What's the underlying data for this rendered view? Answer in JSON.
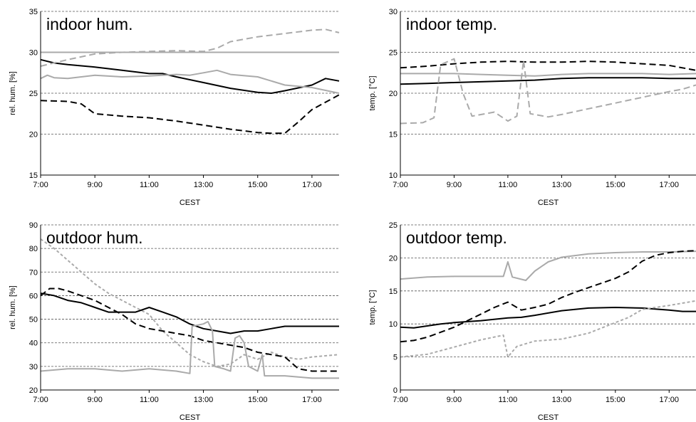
{
  "chart_data": [
    {
      "type": "line",
      "title": "indoor hum.",
      "xlabel": "CEST",
      "ylabel": "rel. hum. [%]",
      "xlim": [
        "7:00",
        "18:00"
      ],
      "ylim": [
        15,
        35
      ],
      "x_ticks": [
        "7:00",
        "9:00",
        "11:00",
        "13:00",
        "15:00",
        "17:00"
      ],
      "y_ticks": [
        15,
        20,
        25,
        30,
        35
      ],
      "grid": true,
      "series": [
        {
          "style": "solid",
          "color": "#000000",
          "x": [
            "7:00",
            "7:30",
            "8:00",
            "9:00",
            "10:00",
            "11:00",
            "11:30",
            "12:00",
            "13:00",
            "14:00",
            "15:00",
            "15:30",
            "16:00",
            "17:00",
            "17:30",
            "18:00"
          ],
          "values": [
            29.1,
            28.7,
            28.5,
            28.2,
            27.8,
            27.4,
            27.4,
            27.0,
            26.3,
            25.6,
            25.1,
            25.0,
            25.3,
            26.0,
            26.8,
            26.5
          ]
        },
        {
          "style": "dashed",
          "color": "#000000",
          "x": [
            "7:00",
            "8:00",
            "8:30",
            "9:00",
            "10:00",
            "11:00",
            "12:00",
            "13:00",
            "14:00",
            "15:00",
            "15:30",
            "16:00",
            "16:30",
            "17:00",
            "18:00"
          ],
          "values": [
            24.1,
            24.0,
            23.7,
            22.5,
            22.2,
            22.0,
            21.6,
            21.1,
            20.6,
            20.2,
            20.1,
            20.1,
            21.5,
            23.0,
            24.8
          ]
        },
        {
          "style": "solid",
          "color": "#aaaaaa",
          "x": [
            "7:00",
            "7:15",
            "7:30",
            "8:00",
            "9:00",
            "10:00",
            "11:00",
            "12:00",
            "12:30",
            "13:00",
            "13:30",
            "14:00",
            "15:00",
            "16:00",
            "17:00",
            "18:00"
          ],
          "values": [
            26.8,
            27.2,
            26.9,
            26.8,
            27.2,
            27.0,
            27.1,
            27.3,
            27.2,
            27.5,
            27.8,
            27.3,
            27.0,
            26.0,
            25.7,
            25.0
          ]
        },
        {
          "style": "solid",
          "color": "#aaaaaa",
          "x": [
            "7:00",
            "18:00"
          ],
          "values": [
            30.0,
            30.0
          ]
        },
        {
          "style": "dashed",
          "color": "#aaaaaa",
          "x": [
            "7:00",
            "8:00",
            "9:00",
            "10:00",
            "11:00",
            "12:00",
            "13:00",
            "13:30",
            "14:00",
            "15:00",
            "16:00",
            "17:00",
            "17:30",
            "18:00"
          ],
          "values": [
            28.3,
            29.1,
            29.8,
            30.0,
            30.1,
            30.2,
            30.1,
            30.5,
            31.3,
            31.9,
            32.3,
            32.7,
            32.8,
            32.4
          ]
        }
      ]
    },
    {
      "type": "line",
      "title": "indoor temp.",
      "xlabel": "CEST",
      "ylabel": "temp. [°C]",
      "xlim": [
        "7:00",
        "18:00"
      ],
      "ylim": [
        10,
        30
      ],
      "x_ticks": [
        "7:00",
        "9:00",
        "11:00",
        "13:00",
        "15:00",
        "17:00"
      ],
      "y_ticks": [
        10,
        15,
        20,
        25,
        30
      ],
      "grid": true,
      "series": [
        {
          "style": "dashed",
          "color": "#000000",
          "x": [
            "7:00",
            "8:00",
            "9:00",
            "10:00",
            "11:00",
            "12:00",
            "13:00",
            "14:00",
            "15:00",
            "16:00",
            "17:00",
            "18:00"
          ],
          "values": [
            23.1,
            23.3,
            23.6,
            23.8,
            23.9,
            23.8,
            23.8,
            23.9,
            23.8,
            23.6,
            23.4,
            22.8
          ]
        },
        {
          "style": "solid",
          "color": "#aaaaaa",
          "x": [
            "7:00",
            "8:00",
            "9:00",
            "10:00",
            "11:00",
            "12:00",
            "13:00",
            "14:00",
            "15:00",
            "16:00",
            "17:00",
            "18:00"
          ],
          "values": [
            22.4,
            22.4,
            22.4,
            22.3,
            22.2,
            22.1,
            22.3,
            22.4,
            22.4,
            22.4,
            22.3,
            22.4
          ]
        },
        {
          "style": "solid",
          "color": "#000000",
          "x": [
            "7:00",
            "8:00",
            "9:00",
            "10:00",
            "11:00",
            "12:00",
            "13:00",
            "14:00",
            "15:00",
            "16:00",
            "17:00",
            "18:00"
          ],
          "values": [
            21.1,
            21.2,
            21.3,
            21.4,
            21.5,
            21.6,
            21.8,
            21.9,
            21.9,
            21.9,
            21.8,
            21.8
          ]
        },
        {
          "style": "dashed",
          "color": "#aaaaaa",
          "x": [
            "7:00",
            "7:50",
            "8:15",
            "8:30",
            "9:00",
            "9:20",
            "9:40",
            "10:30",
            "11:00",
            "11:20",
            "11:35",
            "11:50",
            "12:30",
            "13:00",
            "14:00",
            "15:00",
            "16:00",
            "17:00",
            "17:30",
            "18:00"
          ],
          "values": [
            16.3,
            16.4,
            17.0,
            23.5,
            24.2,
            20.0,
            17.2,
            17.7,
            16.6,
            17.2,
            24.0,
            17.5,
            17.1,
            17.4,
            18.1,
            18.8,
            19.5,
            20.2,
            20.5,
            21.0
          ]
        }
      ]
    },
    {
      "type": "line",
      "title": "outdoor hum.",
      "xlabel": "CEST",
      "ylabel": "rel. hum. [%]",
      "xlim": [
        "7:00",
        "18:00"
      ],
      "ylim": [
        20,
        90
      ],
      "x_ticks": [
        "7:00",
        "9:00",
        "11:00",
        "13:00",
        "15:00",
        "17:00"
      ],
      "y_ticks": [
        20,
        30,
        40,
        50,
        60,
        70,
        80,
        90
      ],
      "grid": true,
      "series": [
        {
          "style": "dotted",
          "color": "#aaaaaa",
          "x": [
            "7:00",
            "7:30",
            "8:00",
            "8:30",
            "9:00",
            "9:30",
            "10:00",
            "10:30",
            "11:00",
            "11:30",
            "12:00",
            "12:30",
            "13:00",
            "13:30",
            "14:00",
            "14:30",
            "15:00",
            "15:30",
            "16:00",
            "16:30",
            "17:00",
            "18:00"
          ],
          "values": [
            84,
            80,
            75,
            70,
            65,
            61,
            58,
            55,
            52,
            45,
            40,
            35,
            32,
            30,
            31,
            35,
            33,
            36,
            34,
            33,
            34,
            35
          ]
        },
        {
          "style": "solid",
          "color": "#000000",
          "x": [
            "7:00",
            "7:30",
            "8:00",
            "8:30",
            "9:00",
            "9:30",
            "10:00",
            "10:30",
            "11:00",
            "11:30",
            "12:00",
            "12:30",
            "13:00",
            "13:30",
            "14:00",
            "14:30",
            "15:00",
            "15:30",
            "16:00",
            "17:00",
            "18:00"
          ],
          "values": [
            61,
            60,
            58,
            57,
            55,
            53,
            53,
            53,
            55,
            53,
            51,
            48,
            46,
            45,
            44,
            45,
            45,
            46,
            47,
            47,
            47
          ]
        },
        {
          "style": "dashed",
          "color": "#000000",
          "x": [
            "7:00",
            "7:20",
            "7:40",
            "8:00",
            "8:30",
            "9:00",
            "9:30",
            "10:00",
            "10:30",
            "11:00",
            "11:30",
            "12:00",
            "12:30",
            "13:00",
            "13:30",
            "14:00",
            "14:30",
            "15:00",
            "15:30",
            "16:00",
            "16:30",
            "17:00",
            "18:00"
          ],
          "values": [
            60,
            63,
            63,
            62,
            60,
            58,
            55,
            52,
            48,
            46,
            45,
            44,
            43,
            41,
            40,
            39,
            38,
            36,
            35,
            34,
            29,
            28,
            28
          ]
        },
        {
          "style": "solid",
          "color": "#aaaaaa",
          "x": [
            "7:00",
            "8:00",
            "9:00",
            "10:00",
            "11:00",
            "12:00",
            "12:30",
            "12:35",
            "13:00",
            "13:10",
            "13:20",
            "13:25",
            "13:45",
            "14:00",
            "14:10",
            "14:20",
            "14:30",
            "14:40",
            "15:00",
            "15:10",
            "15:15",
            "16:00",
            "17:00",
            "18:00"
          ],
          "values": [
            28,
            29,
            29,
            28,
            29,
            28,
            27,
            47,
            48,
            49,
            45,
            30,
            29,
            28,
            42,
            43,
            40,
            30,
            28,
            35,
            26,
            26,
            25,
            25
          ]
        }
      ]
    },
    {
      "type": "line",
      "title": "outdoor temp.",
      "xlabel": "CEST",
      "ylabel": "temp. [°C]",
      "xlim": [
        "7:00",
        "18:00"
      ],
      "ylim": [
        0,
        25
      ],
      "x_ticks": [
        "7:00",
        "9:00",
        "11:00",
        "13:00",
        "15:00",
        "17:00"
      ],
      "y_ticks": [
        0,
        5,
        10,
        15,
        20,
        25
      ],
      "grid": true,
      "series": [
        {
          "style": "solid",
          "color": "#aaaaaa",
          "x": [
            "7:00",
            "8:00",
            "9:00",
            "10:00",
            "10:50",
            "11:00",
            "11:10",
            "11:40",
            "12:00",
            "12:30",
            "13:00",
            "14:00",
            "15:00",
            "16:00",
            "17:00",
            "18:00"
          ],
          "values": [
            16.8,
            17.1,
            17.2,
            17.2,
            17.2,
            19.4,
            17.1,
            16.6,
            18.0,
            19.4,
            20.1,
            20.6,
            20.8,
            20.9,
            20.9,
            21.0
          ]
        },
        {
          "style": "dashed",
          "color": "#000000",
          "x": [
            "7:00",
            "7:30",
            "8:00",
            "9:00",
            "10:00",
            "10:30",
            "11:00",
            "11:30",
            "12:00",
            "12:30",
            "13:00",
            "13:30",
            "14:00",
            "14:30",
            "15:00",
            "15:30",
            "16:00",
            "16:30",
            "17:00",
            "17:30",
            "18:00"
          ],
          "values": [
            7.3,
            7.5,
            8.0,
            9.5,
            11.5,
            12.5,
            13.3,
            12.1,
            12.5,
            13.0,
            14.0,
            14.8,
            15.5,
            16.2,
            16.9,
            17.9,
            19.5,
            20.4,
            20.8,
            21.0,
            21.1
          ]
        },
        {
          "style": "solid",
          "color": "#000000",
          "x": [
            "7:00",
            "7:30",
            "8:00",
            "8:30",
            "9:00",
            "10:00",
            "11:00",
            "11:30",
            "12:00",
            "13:00",
            "14:00",
            "15:00",
            "16:00",
            "17:00",
            "17:30",
            "18:00"
          ],
          "values": [
            9.5,
            9.4,
            9.7,
            10.0,
            10.2,
            10.5,
            10.9,
            11.0,
            11.3,
            12.0,
            12.4,
            12.5,
            12.4,
            12.1,
            11.9,
            11.9
          ]
        },
        {
          "style": "dotted",
          "color": "#aaaaaa",
          "x": [
            "7:00",
            "8:00",
            "9:00",
            "10:00",
            "10:50",
            "11:00",
            "11:20",
            "12:00",
            "13:00",
            "14:00",
            "15:00",
            "15:30",
            "16:00",
            "17:00",
            "18:00"
          ],
          "values": [
            5.0,
            5.4,
            6.5,
            7.6,
            8.3,
            5.0,
            6.6,
            7.4,
            7.7,
            8.6,
            10.2,
            11.0,
            12.2,
            12.8,
            13.5
          ]
        }
      ]
    }
  ]
}
